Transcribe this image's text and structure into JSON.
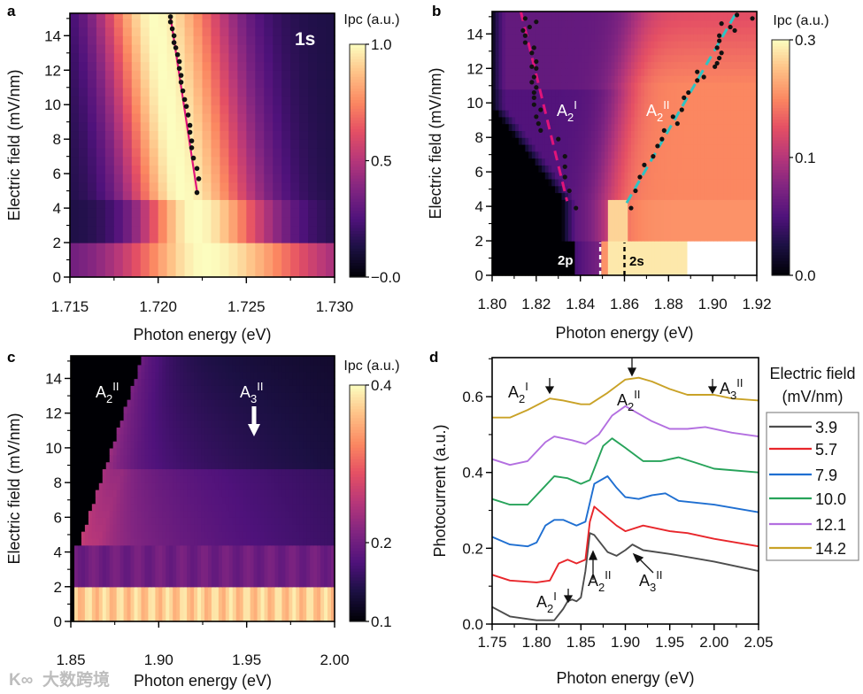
{
  "panels": {
    "a": {
      "letter": "a",
      "tag": "1s"
    },
    "b": {
      "letter": "b",
      "label_2p": "2p",
      "label_2s": "2s",
      "ann1": {
        "base": "A",
        "sub": "2",
        "sup": "I"
      },
      "ann2": {
        "base": "A",
        "sub": "2",
        "sup": "II"
      }
    },
    "c": {
      "letter": "c",
      "ann1": {
        "base": "A",
        "sub": "2",
        "sup": "II"
      },
      "ann2": {
        "base": "A",
        "sub": "3",
        "sup": "II"
      }
    },
    "d": {
      "letter": "d",
      "legend_title_1": "Electric field",
      "legend_title_2": "(mV/nm)",
      "top_a2i": {
        "base": "A",
        "sub": "2",
        "sup": "I"
      },
      "top_a2ii": {
        "base": "A",
        "sub": "2",
        "sup": "II"
      },
      "top_a3ii": {
        "base": "A",
        "sub": "3",
        "sup": "II"
      },
      "bot_a2i": {
        "base": "A",
        "sub": "2",
        "sup": "I"
      },
      "bot_a2ii": {
        "base": "A",
        "sub": "2",
        "sup": "II"
      },
      "bot_a3ii": {
        "base": "A",
        "sub": "3",
        "sup": "II"
      }
    }
  },
  "watermark": "大数跨境",
  "chart_data": [
    {
      "panel": "a",
      "type": "heatmap",
      "xlabel": "Photon energy (eV)",
      "ylabel": "Electric field (mV/nm)",
      "xlim": [
        1.715,
        1.73
      ],
      "ylim": [
        0,
        15.3
      ],
      "xticks": [
        1.715,
        1.72,
        1.725,
        1.73
      ],
      "xtick_labels": [
        "1.715",
        "1.720",
        "1.725",
        "1.730"
      ],
      "xminor": 0.0025,
      "yticks": [
        0,
        2,
        4,
        6,
        8,
        10,
        12,
        14
      ],
      "ytick_labels": [
        "0",
        "2",
        "4",
        "6",
        "8",
        "10",
        "12",
        "14"
      ],
      "colorbar": {
        "title": "Ipc (a.u.)",
        "range": [
          0,
          1.0
        ],
        "gamma": 1,
        "ticks": [
          1.0,
          0.5,
          0.0
        ],
        "tick_labels": [
          "1.0",
          "0.5",
          "−0.0"
        ]
      },
      "model": {
        "low_field_peak": 1.7227,
        "mid_field_peak": 1.7221,
        "background": 0.13
      },
      "fit_line": [
        [
          1.7222,
          5.0
        ],
        [
          1.7207,
          15.1
        ]
      ],
      "fit_color": "#e0147a",
      "peak_points": [
        [
          1.7222,
          4.9
        ],
        [
          1.7223,
          5.7
        ],
        [
          1.7222,
          6.3
        ],
        [
          1.722,
          6.9
        ],
        [
          1.7219,
          7.5
        ],
        [
          1.7219,
          7.9
        ],
        [
          1.7218,
          8.4
        ],
        [
          1.7218,
          8.8
        ],
        [
          1.7217,
          9.4
        ],
        [
          1.7216,
          9.9
        ],
        [
          1.7215,
          10.3
        ],
        [
          1.7214,
          10.8
        ],
        [
          1.7213,
          11.3
        ],
        [
          1.7213,
          11.7
        ],
        [
          1.7212,
          12.1
        ],
        [
          1.7212,
          12.5
        ],
        [
          1.7211,
          12.9
        ],
        [
          1.721,
          13.3
        ],
        [
          1.7209,
          13.6
        ],
        [
          1.7209,
          14.0
        ],
        [
          1.7208,
          14.4
        ],
        [
          1.7207,
          14.8
        ],
        [
          1.7207,
          15.1
        ]
      ]
    },
    {
      "panel": "b",
      "type": "heatmap",
      "xlabel": "Photon energy (eV)",
      "ylabel": "Electric field (mV/nm)",
      "xlim": [
        1.8,
        1.92
      ],
      "ylim": [
        0,
        15.3
      ],
      "xticks": [
        1.8,
        1.82,
        1.84,
        1.86,
        1.88,
        1.9,
        1.92
      ],
      "xtick_labels": [
        "1.80",
        "1.82",
        "1.84",
        "1.86",
        "1.88",
        "1.90",
        "1.92"
      ],
      "xminor": 0.01,
      "yticks": [
        0,
        2,
        4,
        6,
        8,
        10,
        12,
        14
      ],
      "ytick_labels": [
        "0",
        "2",
        "4",
        "6",
        "8",
        "10",
        "12",
        "14"
      ],
      "colorbar": {
        "title": "Ipc (a.u.)",
        "range": [
          0,
          0.3
        ],
        "gamma": 0.63,
        "ticks": [
          0.3,
          0.1,
          0.0
        ],
        "tick_labels": [
          "0.3",
          "0.1",
          "0.0"
        ]
      },
      "markers_zero_field": [
        {
          "label": "2p",
          "energy": 1.849,
          "color": "#ffffff"
        },
        {
          "label": "2s",
          "energy": 1.86,
          "color": "#000000"
        }
      ],
      "fit_lines": [
        {
          "name": "A2I",
          "color": "#e0147a",
          "points": [
            [
              1.813,
              15.3
            ],
            [
              1.834,
              4.3
            ]
          ]
        },
        {
          "name": "A2II",
          "color": "#2ec4c4",
          "points": [
            [
              1.861,
              4.2
            ],
            [
              1.911,
              15.3
            ]
          ]
        }
      ],
      "peak_points_A2I": [
        [
          1.838,
          3.9
        ],
        [
          1.835,
          4.9
        ],
        [
          1.833,
          5.7
        ],
        [
          1.833,
          6.3
        ],
        [
          1.833,
          6.9
        ],
        [
          1.83,
          7.9
        ],
        [
          1.822,
          8.4
        ],
        [
          1.821,
          8.8
        ],
        [
          1.82,
          9.2
        ],
        [
          1.822,
          9.6
        ],
        [
          1.819,
          9.9
        ],
        [
          1.819,
          10.3
        ],
        [
          1.819,
          10.6
        ],
        [
          1.82,
          10.9
        ],
        [
          1.818,
          11.2
        ],
        [
          1.819,
          11.5
        ],
        [
          1.82,
          12.0
        ],
        [
          1.818,
          12.1
        ],
        [
          1.82,
          12.4
        ],
        [
          1.818,
          12.9
        ],
        [
          1.819,
          13.2
        ],
        [
          1.815,
          13.5
        ],
        [
          1.815,
          13.9
        ],
        [
          1.814,
          14.2
        ],
        [
          1.817,
          14.4
        ],
        [
          1.82,
          14.7
        ],
        [
          1.815,
          14.9
        ]
      ],
      "peak_points_A2II": [
        [
          1.863,
          3.9
        ],
        [
          1.865,
          4.9
        ],
        [
          1.867,
          5.7
        ],
        [
          1.869,
          6.4
        ],
        [
          1.873,
          6.9
        ],
        [
          1.875,
          7.5
        ],
        [
          1.877,
          7.9
        ],
        [
          1.878,
          8.4
        ],
        [
          1.884,
          8.8
        ],
        [
          1.882,
          9.2
        ],
        [
          1.886,
          9.6
        ],
        [
          1.887,
          10.3
        ],
        [
          1.889,
          10.6
        ],
        [
          1.893,
          11.3
        ],
        [
          1.896,
          11.5
        ],
        [
          1.893,
          11.8
        ],
        [
          1.901,
          12.1
        ],
        [
          1.902,
          12.3
        ],
        [
          1.903,
          12.6
        ],
        [
          1.904,
          12.9
        ],
        [
          1.902,
          13.2
        ],
        [
          1.903,
          13.6
        ],
        [
          1.903,
          13.9
        ],
        [
          1.91,
          14.2
        ],
        [
          1.908,
          14.4
        ],
        [
          1.904,
          14.6
        ],
        [
          1.918,
          14.9
        ],
        [
          1.911,
          15.1
        ]
      ]
    },
    {
      "panel": "c",
      "type": "heatmap",
      "xlabel": "Photon energy (eV)",
      "ylabel": "Electric field (mV/nm)",
      "xlim": [
        1.85,
        2.0
      ],
      "ylim": [
        0,
        15.3
      ],
      "xticks": [
        1.85,
        1.9,
        1.95,
        2.0
      ],
      "xtick_labels": [
        "1.85",
        "1.90",
        "1.95",
        "2.00"
      ],
      "xminor": 0.025,
      "yticks": [
        0,
        2,
        4,
        6,
        8,
        10,
        12,
        14
      ],
      "ytick_labels": [
        "0",
        "2",
        "4",
        "6",
        "8",
        "10",
        "12",
        "14"
      ],
      "colorbar": {
        "title": "Ipc (a.u.)",
        "range": [
          0.1,
          0.4
        ],
        "gamma": 1,
        "ticks": [
          0.4,
          0.2,
          0.1
        ],
        "tick_labels": [
          "0.4",
          "0.2",
          "0.1"
        ]
      },
      "annotations": [
        {
          "label": "A2II",
          "energy": 1.87,
          "field": 12.8
        },
        {
          "label": "A3II",
          "energy": 1.955,
          "field": 12.8,
          "arrow": "down"
        }
      ]
    },
    {
      "panel": "d",
      "type": "line",
      "xlabel": "Photon energy (eV)",
      "ylabel": "Photocurrent (a.u.)",
      "xlim": [
        1.75,
        2.05
      ],
      "ylim": [
        0,
        0.703
      ],
      "xticks": [
        1.75,
        1.8,
        1.85,
        1.9,
        1.95,
        2.0,
        2.05
      ],
      "xtick_labels": [
        "1.75",
        "1.80",
        "1.85",
        "1.90",
        "1.95",
        "2.00",
        "2.05"
      ],
      "xminor": 0.025,
      "yticks": [
        0,
        0.2,
        0.4,
        0.6
      ],
      "ytick_labels": [
        "0.0",
        "0.2",
        "0.4",
        "0.6"
      ],
      "yminor": 0.1,
      "legend": {
        "title": "Electric field (mV/nm)",
        "placement": "right"
      },
      "series": [
        {
          "name": "3.9",
          "color": "#4d4d4d",
          "points": [
            [
              1.75,
              0.045
            ],
            [
              1.77,
              0.02
            ],
            [
              1.8,
              0.01
            ],
            [
              1.82,
              0.01
            ],
            [
              1.83,
              0.04
            ],
            [
              1.835,
              0.06
            ],
            [
              1.84,
              0.065
            ],
            [
              1.845,
              0.06
            ],
            [
              1.85,
              0.07
            ],
            [
              1.855,
              0.14
            ],
            [
              1.86,
              0.24
            ],
            [
              1.865,
              0.235
            ],
            [
              1.87,
              0.22
            ],
            [
              1.88,
              0.19
            ],
            [
              1.89,
              0.18
            ],
            [
              1.9,
              0.195
            ],
            [
              1.908,
              0.21
            ],
            [
              1.92,
              0.195
            ],
            [
              1.95,
              0.185
            ],
            [
              2.0,
              0.165
            ],
            [
              2.05,
              0.14
            ]
          ]
        },
        {
          "name": "5.7",
          "color": "#e8262b",
          "points": [
            [
              1.75,
              0.13
            ],
            [
              1.77,
              0.115
            ],
            [
              1.8,
              0.11
            ],
            [
              1.815,
              0.115
            ],
            [
              1.825,
              0.16
            ],
            [
              1.835,
              0.17
            ],
            [
              1.845,
              0.16
            ],
            [
              1.855,
              0.17
            ],
            [
              1.86,
              0.27
            ],
            [
              1.865,
              0.31
            ],
            [
              1.875,
              0.29
            ],
            [
              1.89,
              0.26
            ],
            [
              1.9,
              0.245
            ],
            [
              1.92,
              0.26
            ],
            [
              1.95,
              0.245
            ],
            [
              1.97,
              0.24
            ],
            [
              2.0,
              0.225
            ],
            [
              2.05,
              0.205
            ]
          ]
        },
        {
          "name": "7.9",
          "color": "#1f6fd1",
          "points": [
            [
              1.75,
              0.23
            ],
            [
              1.77,
              0.21
            ],
            [
              1.79,
              0.205
            ],
            [
              1.8,
              0.215
            ],
            [
              1.81,
              0.26
            ],
            [
              1.82,
              0.275
            ],
            [
              1.83,
              0.275
            ],
            [
              1.845,
              0.26
            ],
            [
              1.855,
              0.27
            ],
            [
              1.865,
              0.37
            ],
            [
              1.88,
              0.39
            ],
            [
              1.89,
              0.36
            ],
            [
              1.9,
              0.335
            ],
            [
              1.915,
              0.33
            ],
            [
              1.93,
              0.34
            ],
            [
              1.945,
              0.345
            ],
            [
              1.96,
              0.325
            ],
            [
              2.0,
              0.315
            ],
            [
              2.05,
              0.295
            ]
          ]
        },
        {
          "name": "10.0",
          "color": "#27a35a",
          "points": [
            [
              1.75,
              0.33
            ],
            [
              1.77,
              0.315
            ],
            [
              1.79,
              0.315
            ],
            [
              1.81,
              0.365
            ],
            [
              1.82,
              0.39
            ],
            [
              1.835,
              0.385
            ],
            [
              1.85,
              0.37
            ],
            [
              1.86,
              0.38
            ],
            [
              1.875,
              0.47
            ],
            [
              1.885,
              0.49
            ],
            [
              1.9,
              0.465
            ],
            [
              1.92,
              0.43
            ],
            [
              1.94,
              0.43
            ],
            [
              1.96,
              0.44
            ],
            [
              1.98,
              0.425
            ],
            [
              2.0,
              0.41
            ],
            [
              2.05,
              0.4
            ]
          ]
        },
        {
          "name": "12.1",
          "color": "#b36fe0",
          "points": [
            [
              1.75,
              0.435
            ],
            [
              1.77,
              0.42
            ],
            [
              1.79,
              0.43
            ],
            [
              1.81,
              0.48
            ],
            [
              1.82,
              0.495
            ],
            [
              1.84,
              0.485
            ],
            [
              1.855,
              0.475
            ],
            [
              1.87,
              0.5
            ],
            [
              1.885,
              0.55
            ],
            [
              1.9,
              0.575
            ],
            [
              1.915,
              0.555
            ],
            [
              1.93,
              0.535
            ],
            [
              1.95,
              0.515
            ],
            [
              1.97,
              0.515
            ],
            [
              1.99,
              0.52
            ],
            [
              2.02,
              0.505
            ],
            [
              2.05,
              0.495
            ]
          ]
        },
        {
          "name": "14.2",
          "color": "#c9a227",
          "points": [
            [
              1.75,
              0.545
            ],
            [
              1.77,
              0.545
            ],
            [
              1.79,
              0.565
            ],
            [
              1.815,
              0.595
            ],
            [
              1.83,
              0.59
            ],
            [
              1.85,
              0.58
            ],
            [
              1.86,
              0.58
            ],
            [
              1.88,
              0.61
            ],
            [
              1.9,
              0.645
            ],
            [
              1.915,
              0.65
            ],
            [
              1.93,
              0.64
            ],
            [
              1.95,
              0.62
            ],
            [
              1.97,
              0.605
            ],
            [
              2.0,
              0.605
            ],
            [
              2.02,
              0.595
            ],
            [
              2.05,
              0.59
            ]
          ]
        }
      ]
    }
  ]
}
